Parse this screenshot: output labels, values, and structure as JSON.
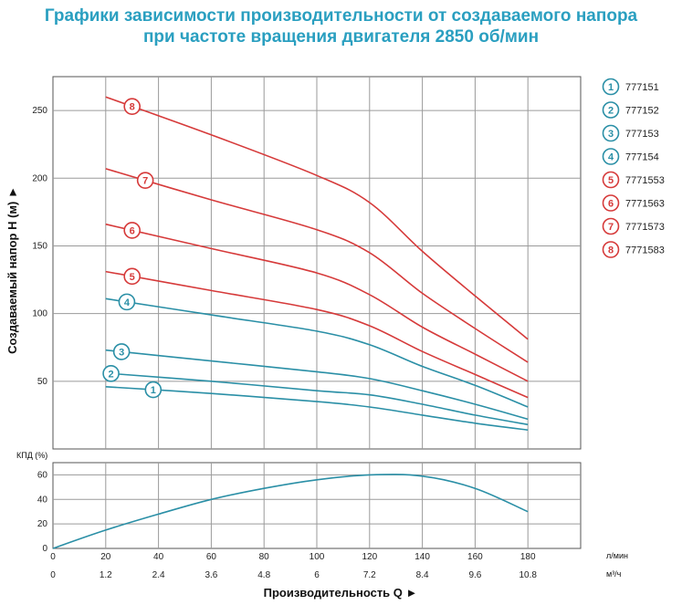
{
  "title_line1": "Графики зависимости производительности от создаваемого напора",
  "title_line2": "при частоте вращения двигателя 2850 об/мин",
  "chart_data": [
    {
      "type": "line",
      "ylabel": "Создаваемый напор H (м) ►",
      "xlim": [
        0,
        200
      ],
      "ylim": [
        0,
        275
      ],
      "yticks": [
        50,
        100,
        150,
        200,
        250
      ],
      "grid": true,
      "legend_position": "right",
      "series": [
        {
          "name": "777151",
          "id": "1",
          "color": "#2a8fa6",
          "x": [
            20,
            60,
            100,
            120,
            140,
            160,
            180
          ],
          "y": [
            46,
            41,
            35,
            31,
            25,
            19,
            14
          ]
        },
        {
          "name": "777152",
          "id": "2",
          "color": "#2a8fa6",
          "x": [
            20,
            60,
            100,
            120,
            140,
            160,
            180
          ],
          "y": [
            56,
            50,
            43,
            40,
            33,
            25,
            18
          ]
        },
        {
          "name": "777153",
          "id": "3",
          "color": "#2a8fa6",
          "x": [
            20,
            60,
            100,
            120,
            140,
            160,
            180
          ],
          "y": [
            73,
            65,
            57,
            52,
            43,
            33,
            22
          ]
        },
        {
          "name": "777154",
          "id": "4",
          "color": "#2a8fa6",
          "x": [
            20,
            60,
            100,
            120,
            140,
            160,
            180
          ],
          "y": [
            111,
            99,
            87,
            77,
            61,
            47,
            31
          ]
        },
        {
          "name": "7771553",
          "id": "5",
          "color": "#d63a3a",
          "x": [
            20,
            60,
            100,
            120,
            140,
            160,
            180
          ],
          "y": [
            131,
            117,
            103,
            91,
            72,
            55,
            38
          ]
        },
        {
          "name": "7771563",
          "id": "6",
          "color": "#d63a3a",
          "x": [
            20,
            60,
            100,
            120,
            140,
            160,
            180
          ],
          "y": [
            166,
            148,
            130,
            114,
            90,
            70,
            50
          ]
        },
        {
          "name": "7771573",
          "id": "7",
          "color": "#d63a3a",
          "x": [
            20,
            60,
            100,
            120,
            140,
            160,
            180
          ],
          "y": [
            207,
            184,
            162,
            145,
            115,
            89,
            64
          ]
        },
        {
          "name": "7771583",
          "id": "8",
          "color": "#d63a3a",
          "x": [
            20,
            60,
            100,
            120,
            140,
            160,
            180
          ],
          "y": [
            260,
            232,
            202,
            182,
            146,
            113,
            81
          ]
        }
      ]
    },
    {
      "type": "line",
      "ylabel": "КПД (%)",
      "xlabel": "Производительность Q ►",
      "x_unit_primary": "л/мин",
      "x_unit_secondary": "м³/ч",
      "xlim": [
        0,
        200
      ],
      "ylim": [
        0,
        70
      ],
      "yticks": [
        0,
        20,
        40,
        60
      ],
      "xticks": [
        0,
        20,
        40,
        60,
        80,
        100,
        120,
        140,
        160,
        180
      ],
      "xticks_secondary": [
        "0",
        "1.2",
        "2.4",
        "3.6",
        "4.8",
        "6",
        "7.2",
        "8.4",
        "9.6",
        "10.8"
      ],
      "grid": true,
      "series": [
        {
          "color": "#2a8fa6",
          "x": [
            0,
            20,
            40,
            60,
            80,
            100,
            120,
            140,
            160,
            180
          ],
          "y": [
            0,
            15,
            28,
            40,
            49,
            56,
            60,
            59,
            49,
            30
          ]
        }
      ]
    }
  ]
}
